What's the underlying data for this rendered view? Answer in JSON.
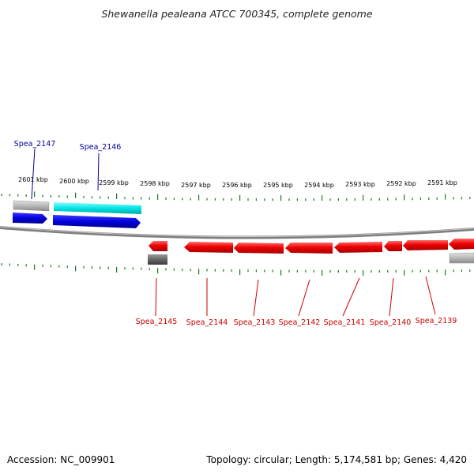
{
  "title": "Shewanella pealeana ATCC 700345, complete genome",
  "footer": {
    "accession": "Accession: NC_009901",
    "stats": "Topology: circular; Length: 5,174,581 bp; Genes: 4,420"
  },
  "scale_labels": [
    "2601 kbp",
    "2600 kbp",
    "2599 kbp",
    "2598 kbp",
    "2597 kbp",
    "2596 kbp",
    "2595 kbp",
    "2594 kbp",
    "2593 kbp",
    "2592 kbp",
    "2591 kbp"
  ],
  "genes_top": [
    {
      "name": "Spea_2147",
      "color": "#000099"
    },
    {
      "name": "Spea_2146",
      "color": "#000099"
    }
  ],
  "genes_bottom": [
    {
      "name": "Spea_2145",
      "color": "#cc0000"
    },
    {
      "name": "Spea_2144",
      "color": "#cc0000"
    },
    {
      "name": "Spea_2143",
      "color": "#cc0000"
    },
    {
      "name": "Spea_2142",
      "color": "#cc0000"
    },
    {
      "name": "Spea_2141",
      "color": "#cc0000"
    },
    {
      "name": "Spea_2140",
      "color": "#cc0000"
    },
    {
      "name": "Spea_2139",
      "color": "#cc0000"
    }
  ],
  "colors": {
    "forward_gene": "#0000dd",
    "forward_cds_light": "#00e5e5",
    "reverse_gene": "#ee0000",
    "pseudo_light": "#b8b8b8",
    "pseudo_dark": "#666666",
    "tick": "#1a7a1a",
    "backbone": "#8a8a8a"
  }
}
